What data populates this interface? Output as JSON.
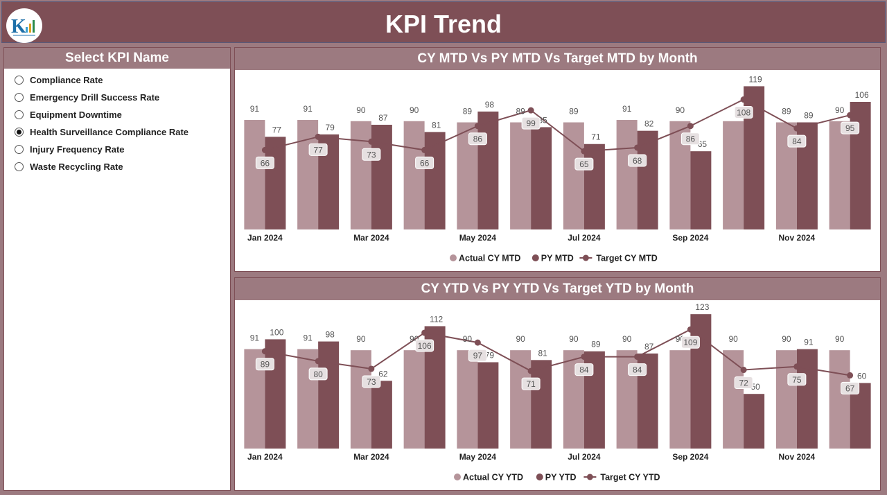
{
  "header": {
    "title": "KPI Trend"
  },
  "slicer": {
    "title": "Select KPI Name",
    "options": [
      {
        "label": "Compliance Rate",
        "selected": false
      },
      {
        "label": "Emergency Drill Success Rate",
        "selected": false
      },
      {
        "label": "Equipment Downtime",
        "selected": false
      },
      {
        "label": "Health Surveillance Compliance Rate",
        "selected": true
      },
      {
        "label": "Injury Frequency Rate",
        "selected": false
      },
      {
        "label": "Waste Recycling Rate",
        "selected": false
      }
    ]
  },
  "colors": {
    "actual": "#b5949a",
    "py": "#7e4f56",
    "target": "#7e4f56",
    "panel_head": "#9c7a80"
  },
  "chart_data": [
    {
      "type": "bar",
      "title": "CY MTD Vs PY MTD Vs Target MTD by Month",
      "categories": [
        "Jan 2024",
        "Feb 2024",
        "Mar 2024",
        "Apr 2024",
        "May 2024",
        "Jun 2024",
        "Jul 2024",
        "Aug 2024",
        "Sep 2024",
        "Oct 2024",
        "Nov 2024",
        "Dec 2024"
      ],
      "x_tick_labels": [
        "Jan 2024",
        "",
        "Mar 2024",
        "",
        "May 2024",
        "",
        "Jul 2024",
        "",
        "Sep 2024",
        "",
        "Nov 2024",
        ""
      ],
      "series": [
        {
          "name": "Actual CY MTD",
          "kind": "bar",
          "values": [
            91,
            91,
            90,
            90,
            89,
            89,
            89,
            91,
            90,
            90,
            89,
            90
          ],
          "labels": [
            "91",
            "91",
            "90",
            "90",
            "89",
            "89",
            "89",
            "91",
            "90",
            "",
            "89",
            "90"
          ]
        },
        {
          "name": "PY MTD",
          "kind": "bar",
          "values": [
            77,
            79,
            87,
            81,
            98,
            85,
            71,
            82,
            65,
            119,
            89,
            106
          ]
        },
        {
          "name": "Target CY MTD",
          "kind": "line",
          "values": [
            66,
            77,
            73,
            66,
            86,
            99,
            65,
            68,
            86,
            108,
            84,
            95
          ]
        }
      ],
      "ylim": [
        0,
        125
      ],
      "legend_position": "bottom-center"
    },
    {
      "type": "bar",
      "title": "CY YTD Vs PY YTD Vs Target YTD by Month",
      "categories": [
        "Jan 2024",
        "Feb 2024",
        "Mar 2024",
        "Apr 2024",
        "May 2024",
        "Jun 2024",
        "Jul 2024",
        "Aug 2024",
        "Sep 2024",
        "Oct 2024",
        "Nov 2024",
        "Dec 2024"
      ],
      "x_tick_labels": [
        "Jan 2024",
        "",
        "Mar 2024",
        "",
        "May 2024",
        "",
        "Jul 2024",
        "",
        "Sep 2024",
        "",
        "Nov 2024",
        ""
      ],
      "series": [
        {
          "name": "Actual CY YTD",
          "kind": "bar",
          "values": [
            91,
            91,
            90,
            90,
            90,
            90,
            90,
            90,
            90,
            90,
            90,
            90
          ],
          "labels": [
            "91",
            "91",
            "90",
            "90",
            "90",
            "90",
            "90",
            "90",
            "90",
            "90",
            "90",
            "90"
          ]
        },
        {
          "name": "PY YTD",
          "kind": "bar",
          "values": [
            100,
            98,
            62,
            112,
            79,
            81,
            89,
            87,
            123,
            50,
            91,
            60
          ]
        },
        {
          "name": "Target CY YTD",
          "kind": "line",
          "values": [
            89,
            80,
            73,
            106,
            97,
            71,
            84,
            84,
            109,
            72,
            75,
            67
          ]
        }
      ],
      "ylim": [
        0,
        125
      ],
      "legend_position": "bottom-center"
    }
  ]
}
